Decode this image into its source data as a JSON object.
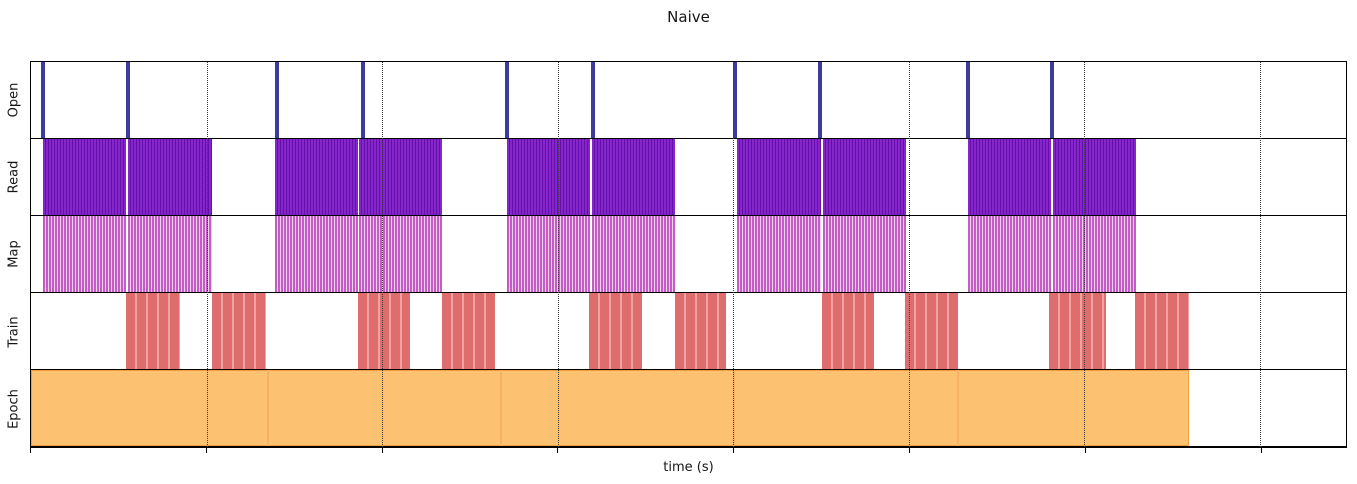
{
  "title": "Naive",
  "xlabel": "time (s)",
  "colors": {
    "open_spike": "#3d3c9e",
    "read_fill": "#8526cb",
    "read_stripe": "#6510ab",
    "map_fill": "#c35cc3",
    "map_stripe": "#efd2ef",
    "train_fill": "#e06d6d",
    "train_stripe": "#efa3a3",
    "epoch_fill": "#fdc172",
    "epoch_border": "#f29d3d",
    "epoch_separator": "#f8b066",
    "axis": "#000000",
    "gridline": "#3a3a3a"
  },
  "chart_data": {
    "type": "timeline",
    "title": "Naive",
    "xlabel": "time (s)",
    "axis_note": "x positions given as percent of axis width; x tick marks are unlabeled; dotted vertical gridlines at ticks",
    "legend": "none",
    "x_ticks_pct": [
      0,
      13.35,
      26.7,
      40.05,
      53.4,
      66.74,
      80.09,
      93.44
    ],
    "gridlines_pct": [
      13.35,
      26.7,
      40.05,
      53.4,
      66.74,
      80.09,
      93.44
    ],
    "rows": [
      {
        "label": "Open",
        "style": "spike",
        "color": "#3d3c9e",
        "events_pct": [
          0.91,
          7.37,
          18.68,
          25.21,
          36.22,
          42.75,
          53.53,
          59.99,
          71.22,
          77.68
        ]
      },
      {
        "label": "Read",
        "style": "dense-stripes",
        "color": "#8526cb",
        "stripe_color": "#6510ab",
        "intervals_pct": [
          [
            0.91,
            7.21
          ],
          [
            7.37,
            13.74
          ],
          [
            18.53,
            24.83
          ],
          [
            24.98,
            31.28
          ],
          [
            36.22,
            42.52
          ],
          [
            42.67,
            48.98
          ],
          [
            53.68,
            60.06
          ],
          [
            60.21,
            66.52
          ],
          [
            71.22,
            77.6
          ],
          [
            77.75,
            84.06
          ]
        ]
      },
      {
        "label": "Map",
        "style": "sparse-stripes",
        "color": "#c35cc3",
        "stripe_color": "#efd2ef",
        "intervals_pct": [
          [
            0.91,
            7.21
          ],
          [
            7.37,
            13.74
          ],
          [
            18.53,
            24.83
          ],
          [
            24.98,
            31.28
          ],
          [
            36.22,
            42.52
          ],
          [
            42.67,
            48.98
          ],
          [
            53.68,
            60.06
          ],
          [
            60.21,
            66.52
          ],
          [
            71.22,
            77.6
          ],
          [
            77.75,
            84.06
          ]
        ]
      },
      {
        "label": "Train",
        "style": "block-stripes",
        "color": "#e06d6d",
        "stripe_color": "#efa3a3",
        "intervals_pct": [
          [
            7.21,
            11.31
          ],
          [
            13.74,
            17.84
          ],
          [
            24.83,
            28.85
          ],
          [
            31.28,
            35.31
          ],
          [
            42.44,
            46.47
          ],
          [
            48.98,
            52.85
          ],
          [
            60.14,
            64.09
          ],
          [
            66.44,
            70.46
          ],
          [
            77.45,
            81.78
          ],
          [
            83.98,
            88.08
          ]
        ]
      },
      {
        "label": "Epoch",
        "style": "solid",
        "color": "#fdc172",
        "border_color": "#f29d3d",
        "intervals_pct": [
          [
            0,
            88.08
          ]
        ],
        "separators_pct": [
          17.92,
          35.69,
          53.38,
          70.39
        ]
      }
    ]
  }
}
